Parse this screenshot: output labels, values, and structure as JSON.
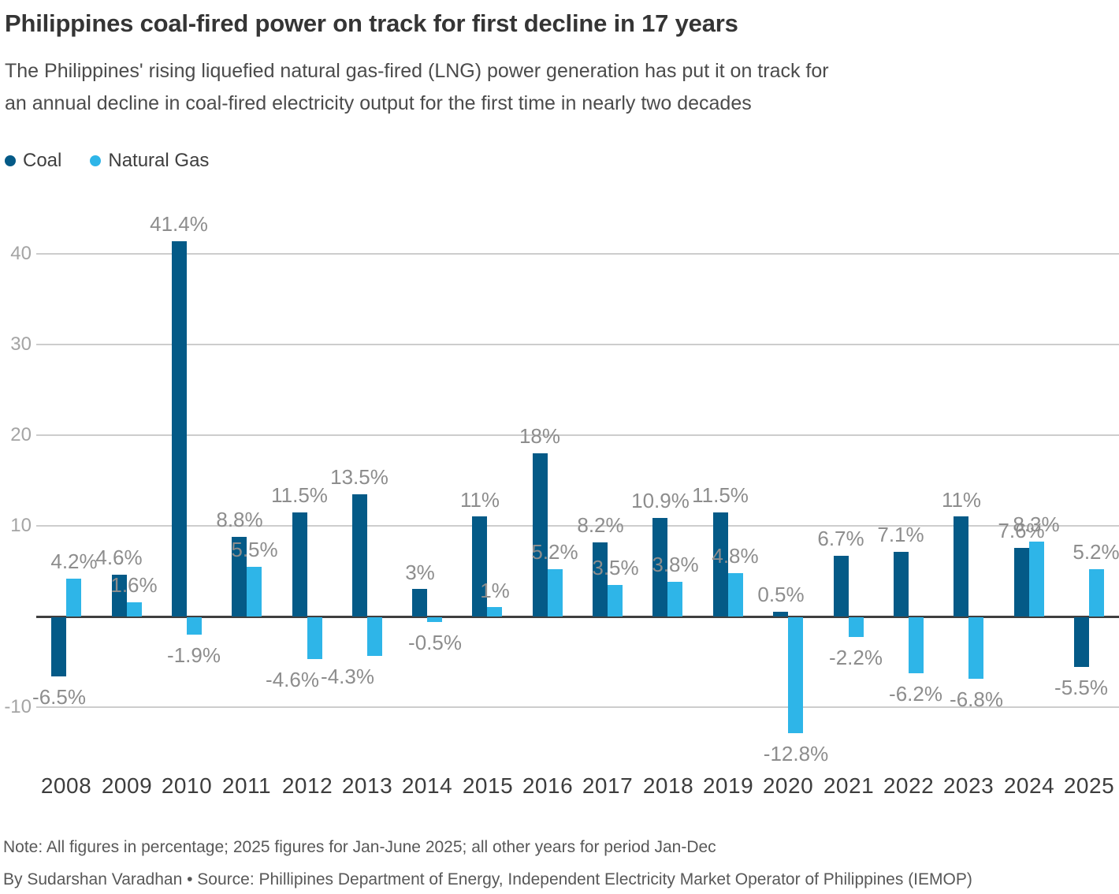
{
  "header": {
    "title": "Philippines coal-fired power on track for first decline in 17 years",
    "subtitle_line1": "The Philippines' rising liquefied natural gas-fired (LNG) power generation has put it on track for",
    "subtitle_line2": "an annual decline in coal-fired electricity output for the first time in nearly two decades"
  },
  "legend": {
    "items": [
      {
        "label": "Coal",
        "color": "#045a87"
      },
      {
        "label": "Natural Gas",
        "color": "#2eb5e8"
      }
    ]
  },
  "chart_data": {
    "type": "bar",
    "title": "Philippines coal-fired power on track for first decline in 17 years",
    "categories": [
      "2008",
      "2009",
      "2010",
      "2011",
      "2012",
      "2013",
      "2014",
      "2015",
      "2016",
      "2017",
      "2018",
      "2019",
      "2020",
      "2021",
      "2022",
      "2023",
      "2024",
      "2025"
    ],
    "series": [
      {
        "name": "Coal",
        "color": "#045a87",
        "values": [
          -6.5,
          4.6,
          41.4,
          8.8,
          11.5,
          13.5,
          3,
          11,
          18,
          8.2,
          10.9,
          11.5,
          0.5,
          6.7,
          7.1,
          11,
          7.6,
          -5.5
        ],
        "labels": [
          "-6.5%",
          "4.6%",
          "41.4%",
          "8.8%",
          "11.5%",
          "13.5%",
          "3%",
          "11%",
          "18%",
          "8.2%",
          "10.9%",
          "11.5%",
          "0.5%",
          "6.7%",
          "7.1%",
          "11%",
          "7.6%",
          "-5.5%"
        ],
        "label_dx": [
          0,
          0,
          0,
          0,
          0,
          0,
          0,
          0,
          0,
          0,
          0,
          0,
          0,
          0,
          0,
          0,
          0,
          0
        ]
      },
      {
        "name": "Natural Gas",
        "color": "#2eb5e8",
        "values": [
          4.2,
          1.6,
          -1.9,
          5.5,
          -4.6,
          -4.3,
          -0.5,
          1,
          5.2,
          3.5,
          3.8,
          4.8,
          -12.8,
          -2.2,
          -6.2,
          -6.8,
          8.3,
          5.2
        ],
        "labels": [
          "4.2%",
          "1.6%",
          "-1.9%",
          "5.5%",
          "-4.6%",
          "-4.3%",
          "-0.5%",
          "1%",
          "5.2%",
          "3.5%",
          "3.8%",
          "4.8%",
          "-12.8%",
          "-2.2%",
          "-6.2%",
          "-6.8%",
          "8.3%",
          "5.2%"
        ],
        "label_dx": [
          0,
          0,
          0,
          0,
          -28,
          -34,
          0,
          0,
          0,
          0,
          0,
          0,
          0,
          0,
          0,
          0,
          0,
          0
        ]
      }
    ],
    "y_ticks": [
      40,
      30,
      20,
      10,
      -10
    ],
    "ylim": [
      -15,
      45
    ],
    "grid": "horizontal",
    "legend_position": "top-left",
    "xlabel": "",
    "ylabel": ""
  },
  "colors": {
    "gridline": "#cdcdcd",
    "zero_line": "#3f3f3f",
    "tick_label": "#a4a4a4",
    "data_label": "#8d8d8d",
    "year_label": "#3d3d3d"
  },
  "footer": {
    "note": "Note: All figures in percentage; 2025 figures for Jan-June 2025; all other years for period Jan-Dec",
    "byline": "By Sudarshan Varadhan • Source: Phillipines Department of Energy, Independent Electricity Market Operator of Philippines (IEMOP)"
  }
}
